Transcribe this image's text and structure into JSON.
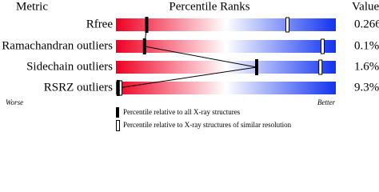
{
  "chart_data": {
    "type": "percentile",
    "header": {
      "metric": "Metric",
      "title": "Percentile Ranks",
      "value": "Value"
    },
    "xlim": [
      0,
      100
    ],
    "rows": [
      {
        "metric": "Rfree",
        "value": "0.266",
        "all": 14,
        "similar": 78
      },
      {
        "metric": "Ramachandran outliers",
        "value": "0.1%",
        "all": 13,
        "similar": 94
      },
      {
        "metric": "Sidechain outliers",
        "value": "1.6%",
        "all": 64,
        "similar": 93
      },
      {
        "metric": "RSRZ outliers",
        "value": "9.3%",
        "all": 1,
        "similar": 2
      }
    ],
    "worse": "Worse",
    "better": "Better",
    "legend": {
      "all": "Percentile relative to all X-ray structures",
      "similar": "Percentile relative to X-ray structures of similar resolution"
    },
    "colors": {
      "low": "#ee0022",
      "mid": "#ffffff",
      "high": "#1133ee"
    }
  }
}
